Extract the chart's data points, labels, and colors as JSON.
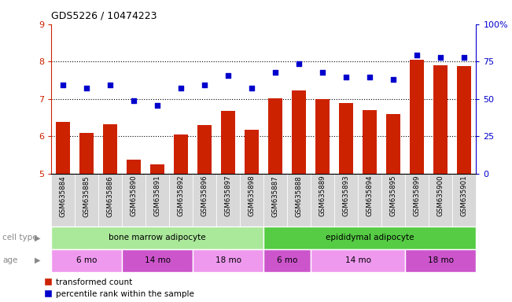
{
  "title": "GDS5226 / 10474223",
  "samples": [
    "GSM635884",
    "GSM635885",
    "GSM635886",
    "GSM635890",
    "GSM635891",
    "GSM635892",
    "GSM635896",
    "GSM635897",
    "GSM635898",
    "GSM635887",
    "GSM635888",
    "GSM635889",
    "GSM635893",
    "GSM635894",
    "GSM635895",
    "GSM635899",
    "GSM635900",
    "GSM635901"
  ],
  "bar_values": [
    6.38,
    6.1,
    6.32,
    5.38,
    5.25,
    6.05,
    6.3,
    6.67,
    6.18,
    7.02,
    7.22,
    7.0,
    6.88,
    6.7,
    6.6,
    8.05,
    7.9,
    7.88
  ],
  "blue_values_left_scale": [
    7.38,
    7.28,
    7.38,
    6.95,
    6.82,
    7.28,
    7.38,
    7.62,
    7.28,
    7.72,
    7.95,
    7.72,
    7.58,
    7.58,
    7.52,
    8.18,
    8.1,
    8.1
  ],
  "ylim_left": [
    5,
    9
  ],
  "ylim_right": [
    0,
    100
  ],
  "yticks_left": [
    5,
    6,
    7,
    8,
    9
  ],
  "yticks_right": [
    0,
    25,
    50,
    75,
    100
  ],
  "ytick_labels_right": [
    "0",
    "25",
    "50",
    "75",
    "100%"
  ],
  "bar_color": "#cc2200",
  "blue_color": "#0000cc",
  "cell_type_groups": [
    {
      "label": "bone marrow adipocyte",
      "start": 0,
      "end": 9,
      "color": "#aae89a"
    },
    {
      "label": "epididymal adipocyte",
      "start": 9,
      "end": 18,
      "color": "#55cc44"
    }
  ],
  "age_groups": [
    {
      "label": "6 mo",
      "start": 0,
      "end": 3,
      "color": "#ee99ee"
    },
    {
      "label": "14 mo",
      "start": 3,
      "end": 6,
      "color": "#cc55cc"
    },
    {
      "label": "18 mo",
      "start": 6,
      "end": 9,
      "color": "#ee99ee"
    },
    {
      "label": "6 mo",
      "start": 9,
      "end": 11,
      "color": "#cc55cc"
    },
    {
      "label": "14 mo",
      "start": 11,
      "end": 15,
      "color": "#ee99ee"
    },
    {
      "label": "18 mo",
      "start": 15,
      "end": 18,
      "color": "#cc55cc"
    }
  ],
  "legend_bar_label": "transformed count",
  "legend_blue_label": "percentile rank within the sample",
  "cell_type_label": "cell type",
  "age_label": "age",
  "sample_bg_color": "#d8d8d8",
  "bar_width": 0.6
}
